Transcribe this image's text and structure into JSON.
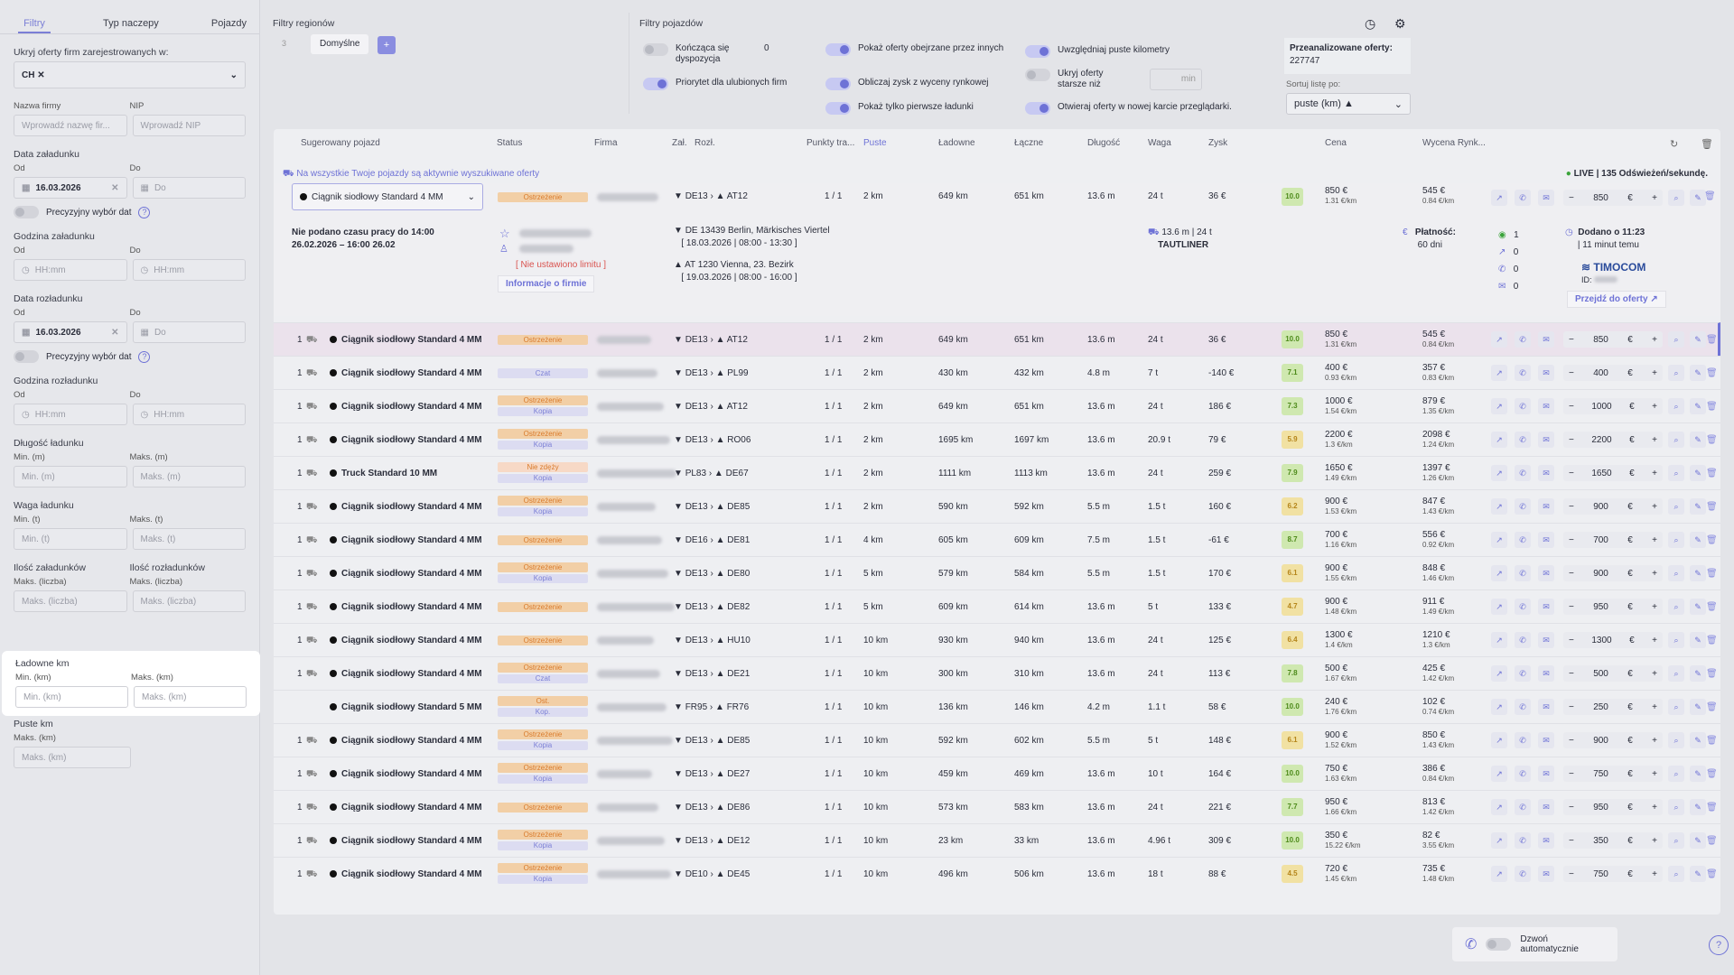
{
  "sidebar": {
    "tabs": [
      "Filtry",
      "Typ naczepy",
      "Pojazdy"
    ],
    "hide_label": "Ukryj oferty firm zarejestrowanych w:",
    "hide_value": "CH",
    "company_label": "Nazwa firmy",
    "company_ph": "Wprowadź nazwę fir...",
    "nip_label": "NIP",
    "nip_ph": "Wprowadź NIP",
    "load_date_label": "Data załadunku",
    "from": "Od",
    "to": "Do",
    "load_date_from": "16.03.2026",
    "to_ph": "Do",
    "precise": "Precyzyjny wybór dat",
    "load_time_label": "Godzina załadunku",
    "time_ph": "HH:mm",
    "unload_date_label": "Data rozładunku",
    "unload_date_from": "16.03.2026",
    "unload_time_label": "Godzina rozładunku",
    "length_label": "Długość ładunku",
    "min_m": "Min. (m)",
    "max_m": "Maks. (m)",
    "weight_label": "Waga ładunku",
    "min_t": "Min. (t)",
    "max_t": "Maks. (t)",
    "loads_label": "Ilość załadunków",
    "unloads_label": "Ilość rozładunków",
    "max_count": "Maks. (liczba)",
    "laden_label": "Ładowne km",
    "min_km": "Min. (km)",
    "max_km": "Maks. (km)",
    "empty_label": "Puste km"
  },
  "header": {
    "region_title": "Filtry regionów",
    "region_count": "3",
    "region_default": "Domyślne",
    "add": "+",
    "vehicle_title": "Filtry pojazdów",
    "opt_ending": "Kończąca się dyspozycja",
    "opt_ending_val": "0",
    "opt_favs": "Priorytet dla ulubionych firm",
    "opt_viewed": "Pokaż oferty obejrzane przez innych",
    "opt_profit": "Obliczaj zysk z wyceny rynkowej",
    "opt_first": "Pokaż tylko pierwsze ładunki",
    "opt_empty": "Uwzględniaj puste kilometry",
    "opt_older": "Ukryj oferty starsze niż",
    "min": "min",
    "opt_newtab": "Otwieraj oferty w nowej karcie przeglądarki.",
    "analyzed_label": "Przeanalizowane oferty:",
    "analyzed_val": "227747",
    "sort_label": "Sortuj listę po:",
    "sort_val": "puste (km) ▲"
  },
  "table": {
    "headers": [
      "Sugerowany pojazd",
      "Status",
      "Firma",
      "Zał.",
      "Rozł.",
      "Punkty tra...",
      "Puste",
      "Ładowne",
      "Łączne",
      "Długość",
      "Waga",
      "Zysk",
      "Cena",
      "Wycena Rynk..."
    ],
    "notice": "Na wszystkie Twoje pojazdy są aktywnie wyszukiwane oferty",
    "live": "LIVE | 135 Odświeżeń/sekundę.",
    "expanded": {
      "vehicle": "Ciągnik siodłowy Standard 4 MM",
      "status": "Ostrzeżenie",
      "from": "DE13",
      "to": "AT12",
      "points": "1 / 1",
      "empty": "2 km",
      "laden": "649 km",
      "total": "651 km",
      "length": "13.6 m",
      "weight": "24 t",
      "profit": "36 €",
      "score": "10.0",
      "price": "850 €",
      "price_km": "1.31 €/km",
      "market": "545 €",
      "market_km": "0.84 €/km",
      "stepper": "850",
      "work_time": "Nie podano czasu pracy do 14:00 26.02.2026 – 16:00 26.02",
      "no_limit": "[ Nie ustawiono limitu ]",
      "company_info": "Informacje o firmie",
      "load_addr": "DE 13439 Berlin, Märkisches Viertel",
      "load_time": "[ 18.03.2026 | 08:00 - 13:30 ]",
      "unload_addr": "AT 1230 Vienna, 23. Bezirk",
      "unload_time": "[ 19.03.2026 | 08:00 - 16:00 ]",
      "truck": "13.6 m | 24 t",
      "truck_type": "TAUTLINER",
      "payment": "Płatność:",
      "payment_days": "60 dni",
      "counts": [
        "1",
        "0",
        "0",
        "0"
      ],
      "added": "Dodano o 11:23",
      "added_ago": "| 11 minut temu",
      "source": "TIMOCOM",
      "id_label": "ID:",
      "go": "Przejdź do oferty ↗"
    },
    "rows": [
      {
        "n": "1",
        "v": "Ciągnik siodłowy Standard 4 MM",
        "s1": "Ostrzeżenie",
        "s2": "",
        "f": "DE13",
        "t": "AT12",
        "e": "2 km",
        "l": "649 km",
        "tot": "651 km",
        "len": "13.6 m",
        "w": "24 t",
        "p": "36 €",
        "sc": "10.0",
        "pr": "850 €",
        "prk": "1.31 €/km",
        "m": "545 €",
        "mk": "0.84 €/km",
        "st": "850"
      },
      {
        "n": "1",
        "v": "Ciągnik siodłowy Standard 4 MM",
        "s1": "Czat",
        "s2": "",
        "f": "DE13",
        "t": "PL99",
        "e": "2 km",
        "l": "430 km",
        "tot": "432 km",
        "len": "4.8 m",
        "w": "7 t",
        "p": "-140 €",
        "sc": "7.1",
        "pr": "400 €",
        "prk": "0.93 €/km",
        "m": "357 €",
        "mk": "0.83 €/km",
        "st": "400"
      },
      {
        "n": "1",
        "v": "Ciągnik siodłowy Standard 4 MM",
        "s1": "Ostrzeżenie",
        "s2": "Kopia",
        "f": "DE13",
        "t": "AT12",
        "e": "2 km",
        "l": "649 km",
        "tot": "651 km",
        "len": "13.6 m",
        "w": "24 t",
        "p": "186 €",
        "sc": "7.3",
        "pr": "1000 €",
        "prk": "1.54 €/km",
        "m": "879 €",
        "mk": "1.35 €/km",
        "st": "1000"
      },
      {
        "n": "1",
        "v": "Ciągnik siodłowy Standard 4 MM",
        "s1": "Ostrzeżenie",
        "s2": "Kopia",
        "f": "DE13",
        "t": "RO06",
        "e": "2 km",
        "l": "1695 km",
        "tot": "1697 km",
        "len": "13.6 m",
        "w": "20.9 t",
        "p": "79 €",
        "sc": "5.9",
        "pr": "2200 €",
        "prk": "1.3 €/km",
        "m": "2098 €",
        "mk": "1.24 €/km",
        "st": "2200"
      },
      {
        "n": "1",
        "v": "Truck Standard 10 MM",
        "s1": "Nie zdęży",
        "s2": "Kopia",
        "f": "PL83",
        "t": "DE67",
        "e": "2 km",
        "l": "1111 km",
        "tot": "1113 km",
        "len": "13.6 m",
        "w": "24 t",
        "p": "259 €",
        "sc": "7.9",
        "pr": "1650 €",
        "prk": "1.49 €/km",
        "m": "1397 €",
        "mk": "1.26 €/km",
        "st": "1650"
      },
      {
        "n": "1",
        "v": "Ciągnik siodłowy Standard 4 MM",
        "s1": "Ostrzeżenie",
        "s2": "Kopia",
        "f": "DE13",
        "t": "DE85",
        "e": "2 km",
        "l": "590 km",
        "tot": "592 km",
        "len": "5.5 m",
        "w": "1.5 t",
        "p": "160 €",
        "sc": "6.2",
        "pr": "900 €",
        "prk": "1.53 €/km",
        "m": "847 €",
        "mk": "1.43 €/km",
        "st": "900"
      },
      {
        "n": "1",
        "v": "Ciągnik siodłowy Standard 4 MM",
        "s1": "Ostrzeżenie",
        "s2": "",
        "f": "DE16",
        "t": "DE81",
        "e": "4 km",
        "l": "605 km",
        "tot": "609 km",
        "len": "7.5 m",
        "w": "1.5 t",
        "p": "-61 €",
        "sc": "8.7",
        "pr": "700 €",
        "prk": "1.16 €/km",
        "m": "556 €",
        "mk": "0.92 €/km",
        "st": "700"
      },
      {
        "n": "1",
        "v": "Ciągnik siodłowy Standard 4 MM",
        "s1": "Ostrzeżenie",
        "s2": "Kopia",
        "f": "DE13",
        "t": "DE80",
        "e": "5 km",
        "l": "579 km",
        "tot": "584 km",
        "len": "5.5 m",
        "w": "1.5 t",
        "p": "170 €",
        "sc": "6.1",
        "pr": "900 €",
        "prk": "1.55 €/km",
        "m": "848 €",
        "mk": "1.46 €/km",
        "st": "900"
      },
      {
        "n": "1",
        "v": "Ciągnik siodłowy Standard 4 MM",
        "s1": "Ostrzeżenie",
        "s2": "",
        "f": "DE13",
        "t": "DE82",
        "e": "5 km",
        "l": "609 km",
        "tot": "614 km",
        "len": "13.6 m",
        "w": "5 t",
        "p": "133 €",
        "sc": "4.7",
        "pr": "900 €",
        "prk": "1.48 €/km",
        "m": "911 €",
        "mk": "1.49 €/km",
        "st": "950"
      },
      {
        "n": "1",
        "v": "Ciągnik siodłowy Standard 4 MM",
        "s1": "Ostrzeżenie",
        "s2": "",
        "f": "DE13",
        "t": "HU10",
        "e": "10 km",
        "l": "930 km",
        "tot": "940 km",
        "len": "13.6 m",
        "w": "24 t",
        "p": "125 €",
        "sc": "6.4",
        "pr": "1300 €",
        "prk": "1.4 €/km",
        "m": "1210 €",
        "mk": "1.3 €/km",
        "st": "1300"
      },
      {
        "n": "1",
        "v": "Ciągnik siodłowy Standard 4 MM",
        "s1": "Ostrzeżenie",
        "s2": "Czat",
        "f": "DE13",
        "t": "DE21",
        "e": "10 km",
        "l": "300 km",
        "tot": "310 km",
        "len": "13.6 m",
        "w": "24 t",
        "p": "113 €",
        "sc": "7.8",
        "pr": "500 €",
        "prk": "1.67 €/km",
        "m": "425 €",
        "mk": "1.42 €/km",
        "st": "500"
      },
      {
        "n": "",
        "v": "Ciągnik siodłowy Standard 5 MM",
        "s1": "Ost.",
        "s2": "Kop.",
        "f": "FR95",
        "t": "FR76",
        "e": "10 km",
        "l": "136 km",
        "tot": "146 km",
        "len": "4.2 m",
        "w": "1.1 t",
        "p": "58 €",
        "sc": "10.0",
        "pr": "240 €",
        "prk": "1.76 €/km",
        "m": "102 €",
        "mk": "0.74 €/km",
        "st": "250"
      },
      {
        "n": "1",
        "v": "Ciągnik siodłowy Standard 4 MM",
        "s1": "Ostrzeżenie",
        "s2": "Kopia",
        "f": "DE13",
        "t": "DE85",
        "e": "10 km",
        "l": "592 km",
        "tot": "602 km",
        "len": "5.5 m",
        "w": "5 t",
        "p": "148 €",
        "sc": "6.1",
        "pr": "900 €",
        "prk": "1.52 €/km",
        "m": "850 €",
        "mk": "1.43 €/km",
        "st": "900"
      },
      {
        "n": "1",
        "v": "Ciągnik siodłowy Standard 4 MM",
        "s1": "Ostrzeżenie",
        "s2": "Kopia",
        "f": "DE13",
        "t": "DE27",
        "e": "10 km",
        "l": "459 km",
        "tot": "469 km",
        "len": "13.6 m",
        "w": "10 t",
        "p": "164 €",
        "sc": "10.0",
        "pr": "750 €",
        "prk": "1.63 €/km",
        "m": "386 €",
        "mk": "0.84 €/km",
        "st": "750"
      },
      {
        "n": "1",
        "v": "Ciągnik siodłowy Standard 4 MM",
        "s1": "Ostrzeżenie",
        "s2": "",
        "f": "DE13",
        "t": "DE86",
        "e": "10 km",
        "l": "573 km",
        "tot": "583 km",
        "len": "13.6 m",
        "w": "24 t",
        "p": "221 €",
        "sc": "7.7",
        "pr": "950 €",
        "prk": "1.66 €/km",
        "m": "813 €",
        "mk": "1.42 €/km",
        "st": "950"
      },
      {
        "n": "1",
        "v": "Ciągnik siodłowy Standard 4 MM",
        "s1": "Ostrzeżenie",
        "s2": "Kopia",
        "f": "DE13",
        "t": "DE12",
        "e": "10 km",
        "l": "23 km",
        "tot": "33 km",
        "len": "13.6 m",
        "w": "4.96 t",
        "p": "309 €",
        "sc": "10.0",
        "pr": "350 €",
        "prk": "15.22 €/km",
        "m": "82 €",
        "mk": "3.55 €/km",
        "st": "350"
      },
      {
        "n": "1",
        "v": "Ciągnik siodłowy Standard 4 MM",
        "s1": "Ostrzeżenie",
        "s2": "Kopia",
        "f": "DE10",
        "t": "DE45",
        "e": "10 km",
        "l": "496 km",
        "tot": "506 km",
        "len": "13.6 m",
        "w": "18 t",
        "p": "88 €",
        "sc": "4.5",
        "pr": "720 €",
        "prk": "1.45 €/km",
        "m": "735 €",
        "mk": "1.48 €/km",
        "st": "750"
      }
    ]
  },
  "bottom": {
    "auto_call": "Dzwoń automatycznie"
  },
  "colors": {
    "accent": "#6e72d6",
    "warn": "#f2cfa6",
    "score_hi": "#cfe8b0",
    "score_mid": "#f1e1a3"
  }
}
